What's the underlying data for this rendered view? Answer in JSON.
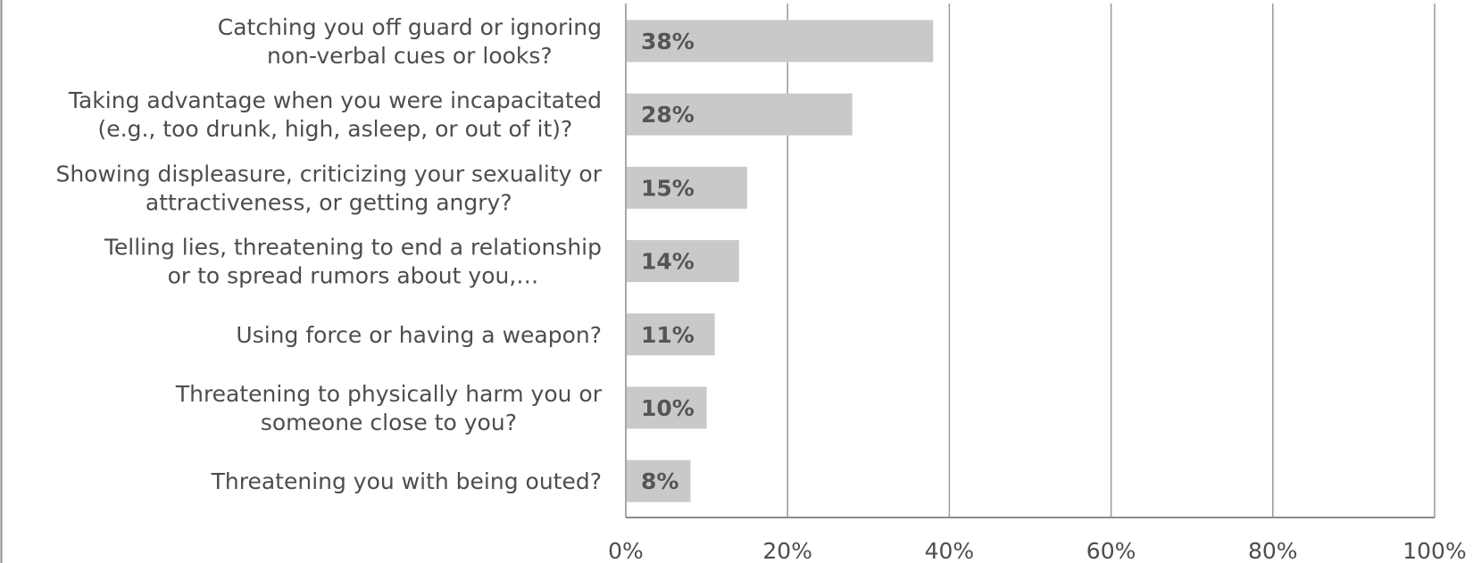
{
  "chart_data": {
    "type": "bar",
    "orientation": "horizontal",
    "categories": [
      [
        "Catching you off guard or ignoring",
        "non-verbal cues or looks?"
      ],
      [
        "Taking advantage when you were incapacitated",
        "(e.g., too drunk, high, asleep, or out of it)?"
      ],
      [
        "Showing displeasure, criticizing your sexuality or",
        "attractiveness, or getting angry?"
      ],
      [
        "Telling lies, threatening to end a relationship",
        "or to spread rumors about you,…"
      ],
      [
        "Using force or having a weapon?"
      ],
      [
        "Threatening to physically harm you or",
        "someone close to you?"
      ],
      [
        "Threatening you with being outed?"
      ]
    ],
    "values": [
      38,
      28,
      15,
      14,
      11,
      10,
      8
    ],
    "value_labels": [
      "38%",
      "28%",
      "15%",
      "14%",
      "11%",
      "10%",
      "8%"
    ],
    "xlim": [
      0,
      100
    ],
    "xticks": [
      0,
      20,
      40,
      60,
      80,
      100
    ],
    "xtick_labels": [
      "0%",
      "20%",
      "40%",
      "60%",
      "80%",
      "100%"
    ],
    "grid": "vertical",
    "colors": {
      "bar": "#c8c9ca",
      "grid": "#999999",
      "axis": "#8c8c8c",
      "frame": "#8c8c8c"
    }
  }
}
